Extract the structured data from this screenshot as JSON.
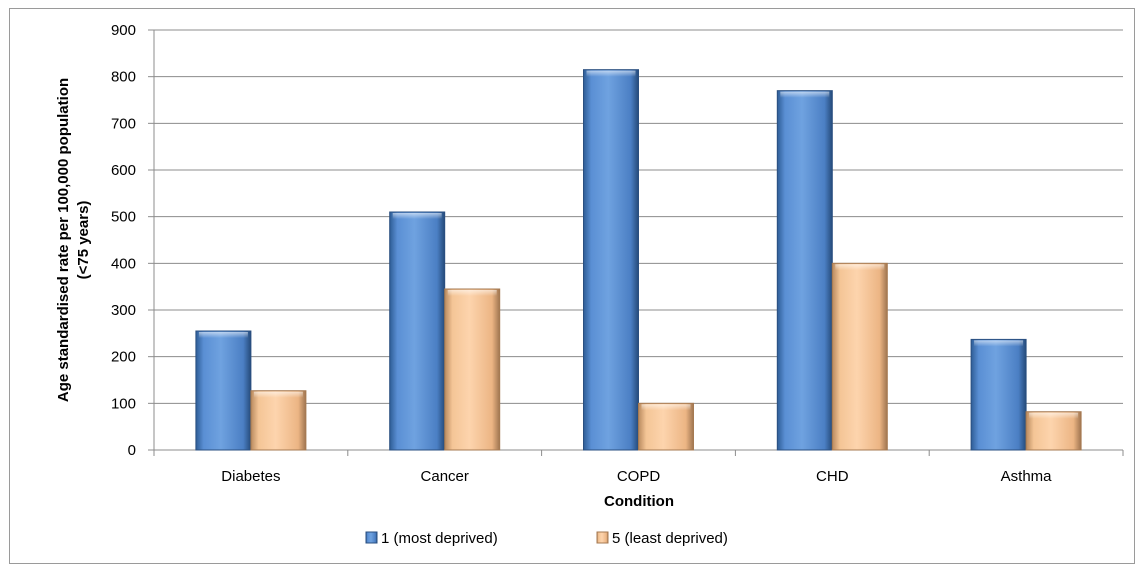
{
  "chart_data": {
    "type": "bar",
    "title": "",
    "xlabel": "Condition",
    "ylabel": [
      "Age standardised  rate per 100,000 population",
      "(<75 years)"
    ],
    "categories": [
      "Diabetes",
      "Cancer",
      "COPD",
      "CHD",
      "Asthma"
    ],
    "series": [
      {
        "name": "1 (most deprived)",
        "values": [
          255,
          510,
          815,
          770,
          237
        ],
        "color": "#4f81bd"
      },
      {
        "name": "5 (least deprived)",
        "values": [
          127,
          345,
          100,
          400,
          82
        ],
        "color": "#fac090"
      }
    ],
    "ylim": [
      0,
      900
    ],
    "yticks": [
      0,
      100,
      200,
      300,
      400,
      500,
      600,
      700,
      800,
      900
    ],
    "grid": true,
    "legend_position": "bottom",
    "style": "3d-bevel"
  }
}
